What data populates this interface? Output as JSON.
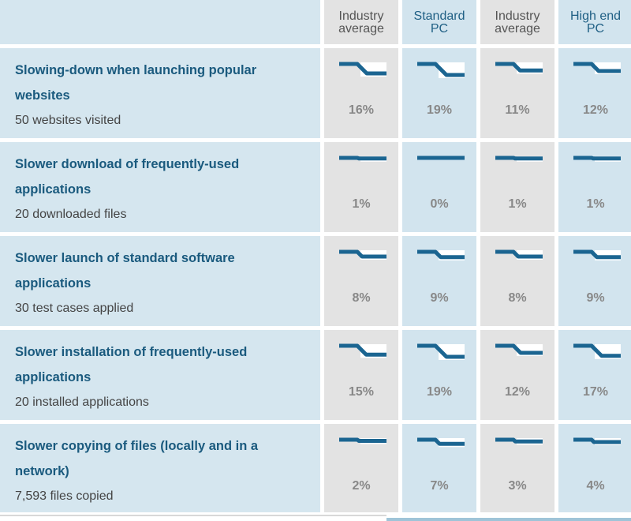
{
  "colors": {
    "line": "#1b6591",
    "headerGray": "#e3e3e3",
    "headerBlue": "#d2e4ee",
    "labelBg": "#d5e6ef"
  },
  "columns": [
    {
      "line1": "Industry",
      "line2": "average"
    },
    {
      "line1": "Standard",
      "line2": "PC"
    },
    {
      "line1": "Industry",
      "line2": "average"
    },
    {
      "line1": "High end",
      "line2": "PC"
    }
  ],
  "rows": [
    {
      "title_line1": "Slowing-down when launching popular",
      "title_line2": "websites",
      "subtitle": "50 websites visited",
      "values": [
        "16%",
        "19%",
        "11%",
        "12%"
      ],
      "numbers": [
        16,
        19,
        11,
        12
      ]
    },
    {
      "title_line1": "Slower download of frequently-used",
      "title_line2": "applications",
      "subtitle": "20 downloaded files",
      "values": [
        "1%",
        "0%",
        "1%",
        "1%"
      ],
      "numbers": [
        1,
        0,
        1,
        1
      ]
    },
    {
      "title_line1": "Slower launch of standard software",
      "title_line2": "applications",
      "subtitle": "30 test cases applied",
      "values": [
        "8%",
        "9%",
        "8%",
        "9%"
      ],
      "numbers": [
        8,
        9,
        8,
        9
      ]
    },
    {
      "title_line1": "Slower installation of frequently-used",
      "title_line2": "applications",
      "subtitle": "20 installed applications",
      "values": [
        "15%",
        "19%",
        "12%",
        "17%"
      ],
      "numbers": [
        15,
        19,
        12,
        17
      ]
    },
    {
      "title_line1": "Slower copying of files (locally and in a",
      "title_line2": "network)",
      "subtitle": "7,593 files copied",
      "values": [
        "2%",
        "7%",
        "3%",
        "4%"
      ],
      "numbers": [
        2,
        7,
        3,
        4
      ]
    }
  ]
}
